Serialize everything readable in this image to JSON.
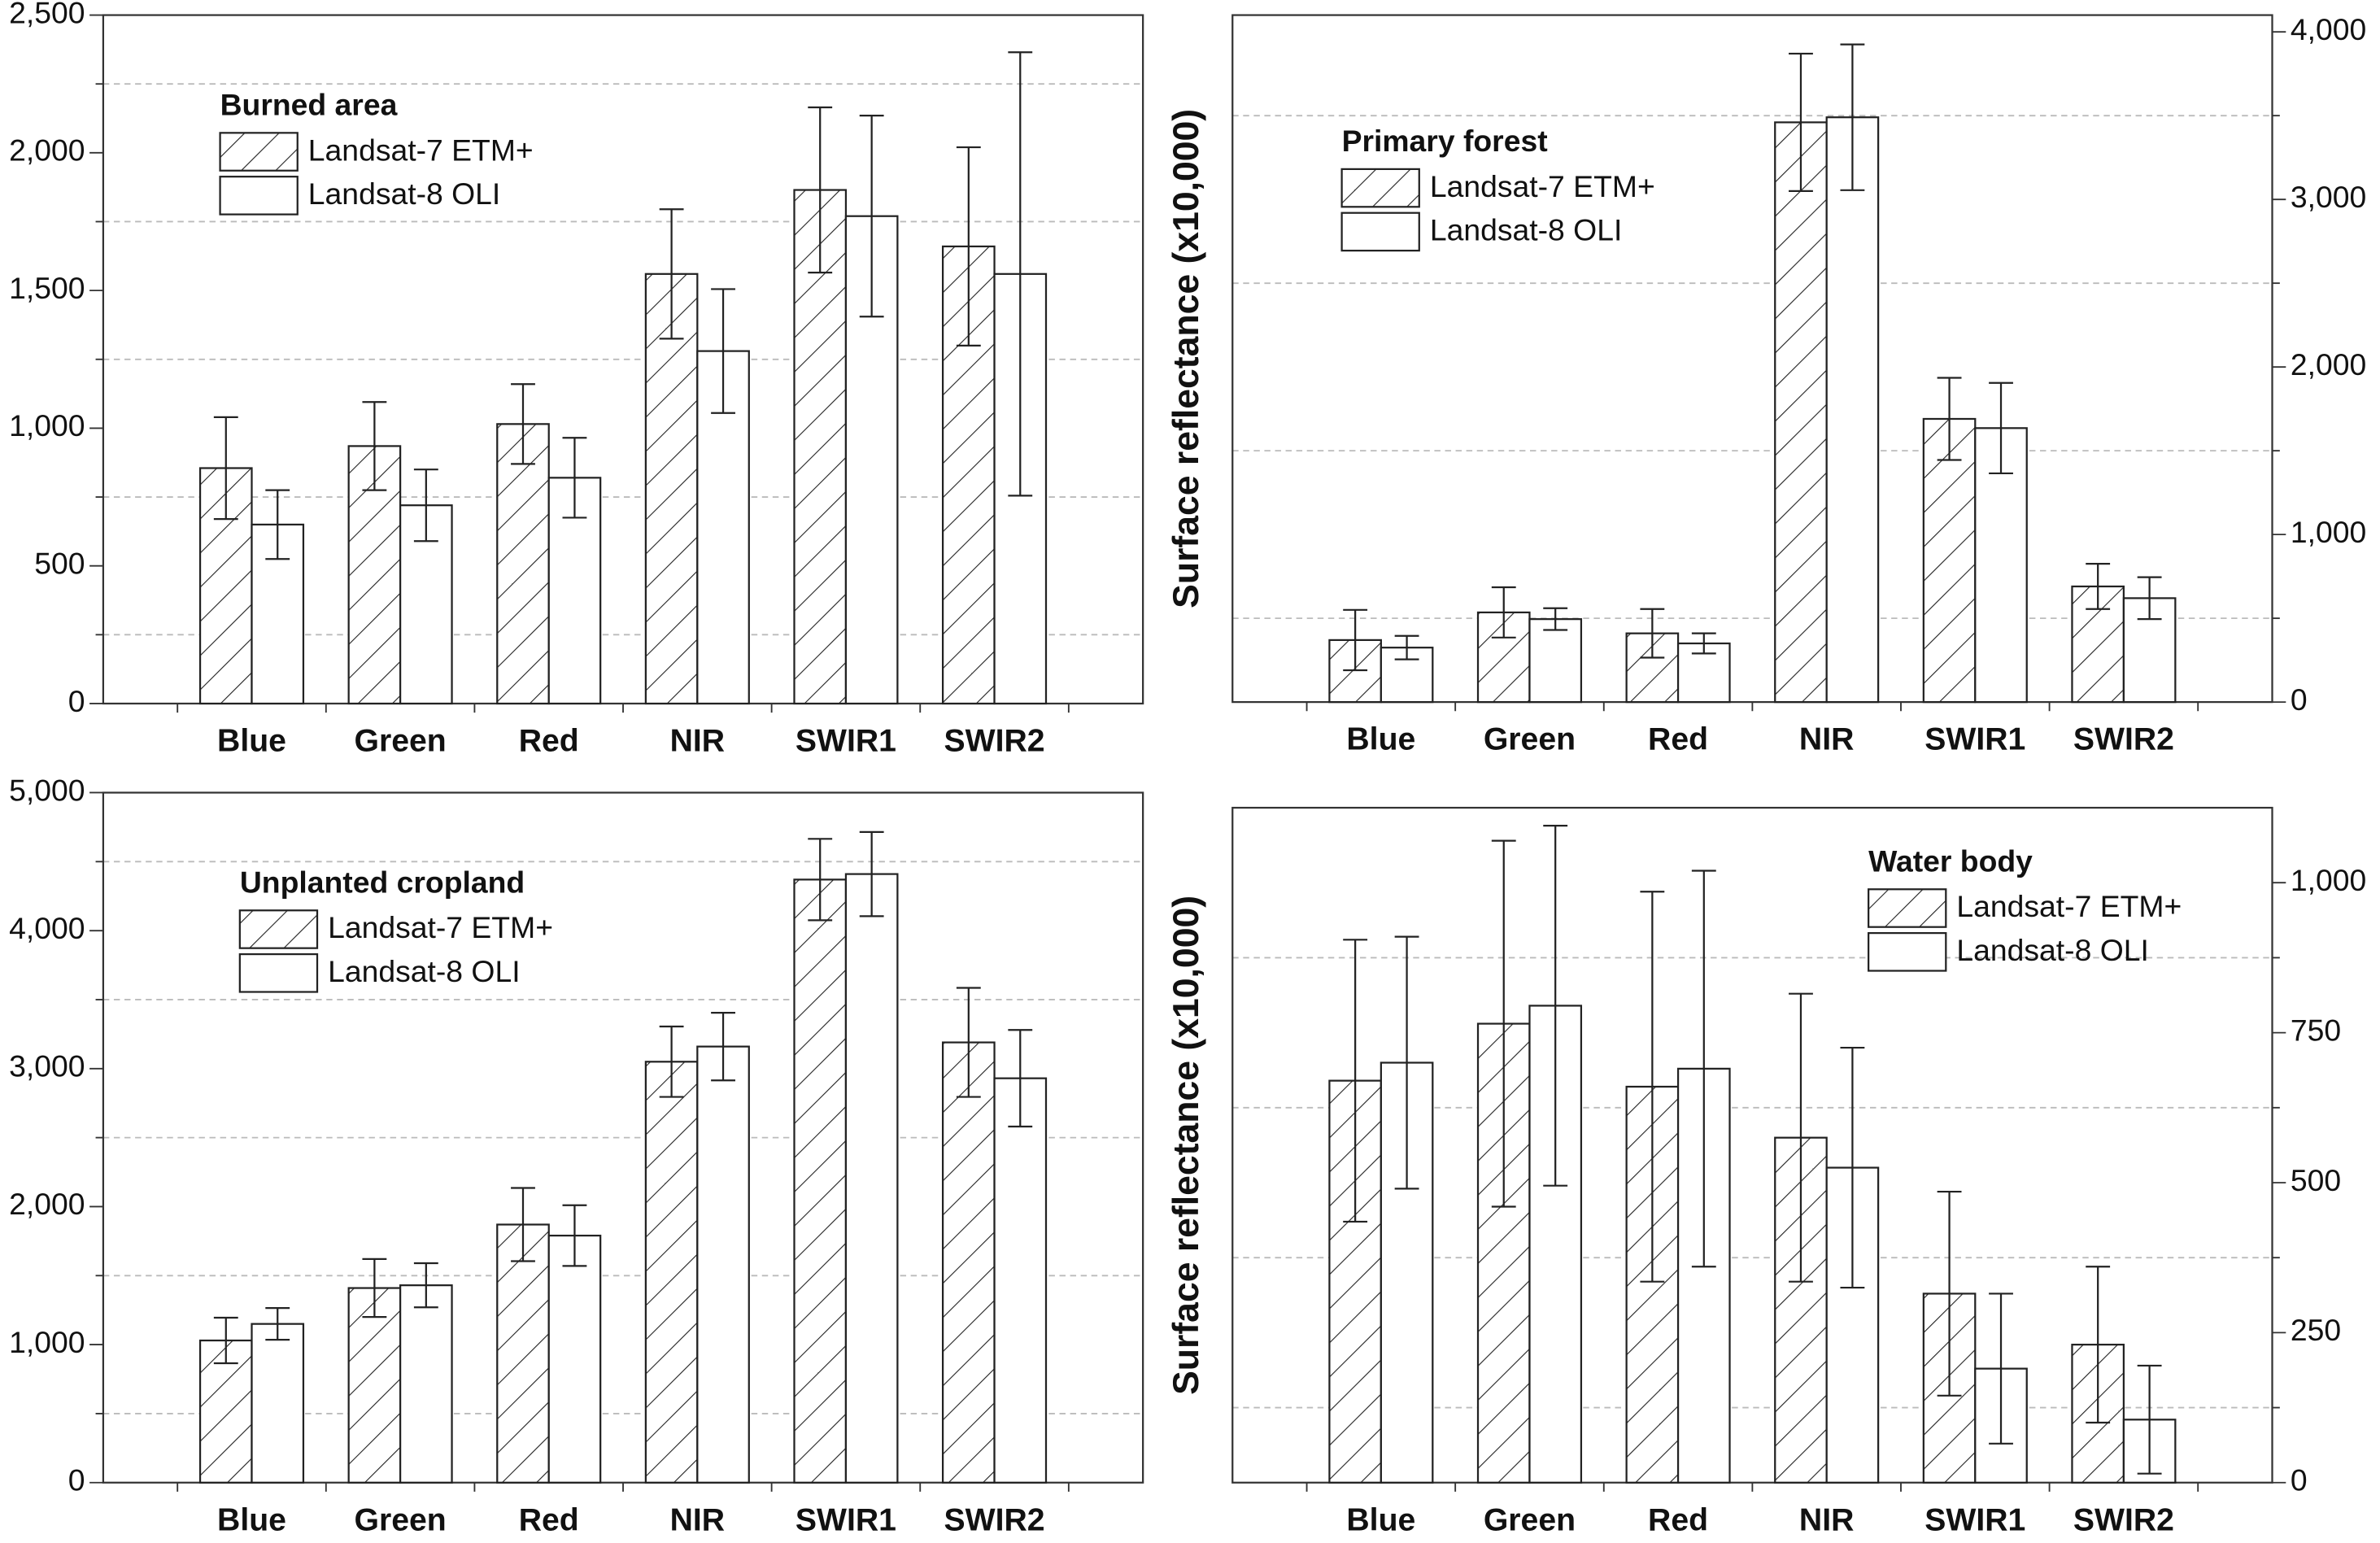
{
  "chart_data": [
    {
      "type": "bar",
      "title": "Burned area",
      "categories": [
        "Blue",
        "Green",
        "Red",
        "NIR",
        "SWIR1",
        "SWIR2"
      ],
      "series": [
        {
          "name": "Landsat-7 ETM+",
          "color": "#ffffff",
          "hatch": "/",
          "values": [
            855,
            935,
            1015,
            1560,
            1865,
            1660
          ],
          "errors": [
            185,
            160,
            145,
            235,
            300,
            360
          ]
        },
        {
          "name": "Landsat-8 OLI",
          "color": "#ffffff",
          "values": [
            650,
            720,
            820,
            1280,
            1770,
            1560
          ],
          "errors": [
            125,
            130,
            145,
            225,
            365,
            805
          ]
        }
      ],
      "ylim": [
        0,
        2500
      ],
      "yticks": [
        0,
        500,
        {
          "value": 1000,
          "label": "1,000"
        },
        {
          "value": 1500,
          "label": "1,500"
        },
        {
          "value": 2000,
          "label": "2,000"
        },
        {
          "value": 2500,
          "label": "2,500"
        }
      ],
      "minor_yticks": [
        250,
        750,
        1250,
        1750,
        2250
      ],
      "y_axis_side": "left",
      "grid": true
    },
    {
      "type": "bar",
      "title": "Primary forest",
      "ylabel": "Surface reflectance (x10,000)",
      "categories": [
        "Blue",
        "Green",
        "Red",
        "NIR",
        "SWIR1",
        "SWIR2"
      ],
      "series": [
        {
          "name": "Landsat-7 ETM+",
          "color": "#ffffff",
          "hatch": "/",
          "values": [
            370,
            535,
            410,
            3460,
            1690,
            690
          ],
          "errors": [
            180,
            150,
            145,
            410,
            245,
            135
          ]
        },
        {
          "name": "Landsat-8 OLI",
          "color": "#ffffff",
          "values": [
            325,
            495,
            350,
            3490,
            1635,
            620
          ],
          "errors": [
            70,
            65,
            60,
            435,
            270,
            125
          ]
        }
      ],
      "ylim": [
        0,
        4100
      ],
      "yticks": [
        0,
        {
          "value": 1000,
          "label": "1,000"
        },
        {
          "value": 2000,
          "label": "2,000"
        },
        {
          "value": 3000,
          "label": "3,000"
        },
        {
          "value": 4000,
          "label": "4,000"
        }
      ],
      "minor_yticks": [
        500,
        1500,
        2500,
        3500
      ],
      "y_axis_side": "right",
      "grid": true
    },
    {
      "type": "bar",
      "title": "Unplanted cropland",
      "categories": [
        "Blue",
        "Green",
        "Red",
        "NIR",
        "SWIR1",
        "SWIR2"
      ],
      "series": [
        {
          "name": "Landsat-7 ETM+",
          "color": "#ffffff",
          "hatch": "/",
          "values": [
            1030,
            1410,
            1870,
            3050,
            4370,
            3190
          ],
          "errors": [
            165,
            210,
            265,
            255,
            295,
            395
          ]
        },
        {
          "name": "Landsat-8 OLI",
          "color": "#ffffff",
          "values": [
            1150,
            1430,
            1790,
            3160,
            4410,
            2930
          ],
          "errors": [
            115,
            160,
            220,
            245,
            305,
            350
          ]
        }
      ],
      "ylim": [
        0,
        5000
      ],
      "yticks": [
        0,
        {
          "value": 1000,
          "label": "1,000"
        },
        {
          "value": 2000,
          "label": "2,000"
        },
        {
          "value": 3000,
          "label": "3,000"
        },
        {
          "value": 4000,
          "label": "4,000"
        },
        {
          "value": 5000,
          "label": "5,000"
        }
      ],
      "minor_yticks": [
        500,
        1500,
        2500,
        3500,
        4500
      ],
      "y_axis_side": "left",
      "grid": true
    },
    {
      "type": "bar",
      "title": "Water body",
      "ylabel": "Surface reflectance (x10,000)",
      "categories": [
        "Blue",
        "Green",
        "Red",
        "NIR",
        "SWIR1",
        "SWIR2"
      ],
      "series": [
        {
          "name": "Landsat-7 ETM+",
          "color": "#ffffff",
          "hatch": "/",
          "values": [
            670,
            765,
            660,
            575,
            315,
            230
          ],
          "errors": [
            235,
            305,
            325,
            240,
            170,
            130
          ]
        },
        {
          "name": "Landsat-8 OLI",
          "color": "#ffffff",
          "values": [
            700,
            795,
            690,
            525,
            190,
            105
          ],
          "errors": [
            210,
            300,
            330,
            200,
            125,
            90
          ]
        }
      ],
      "ylim": [
        0,
        1125
      ],
      "yticks": [
        0,
        250,
        500,
        750,
        {
          "value": 1000,
          "label": "1,000"
        }
      ],
      "minor_yticks": [
        125,
        375,
        625,
        875
      ],
      "y_axis_side": "right",
      "grid": true
    }
  ]
}
